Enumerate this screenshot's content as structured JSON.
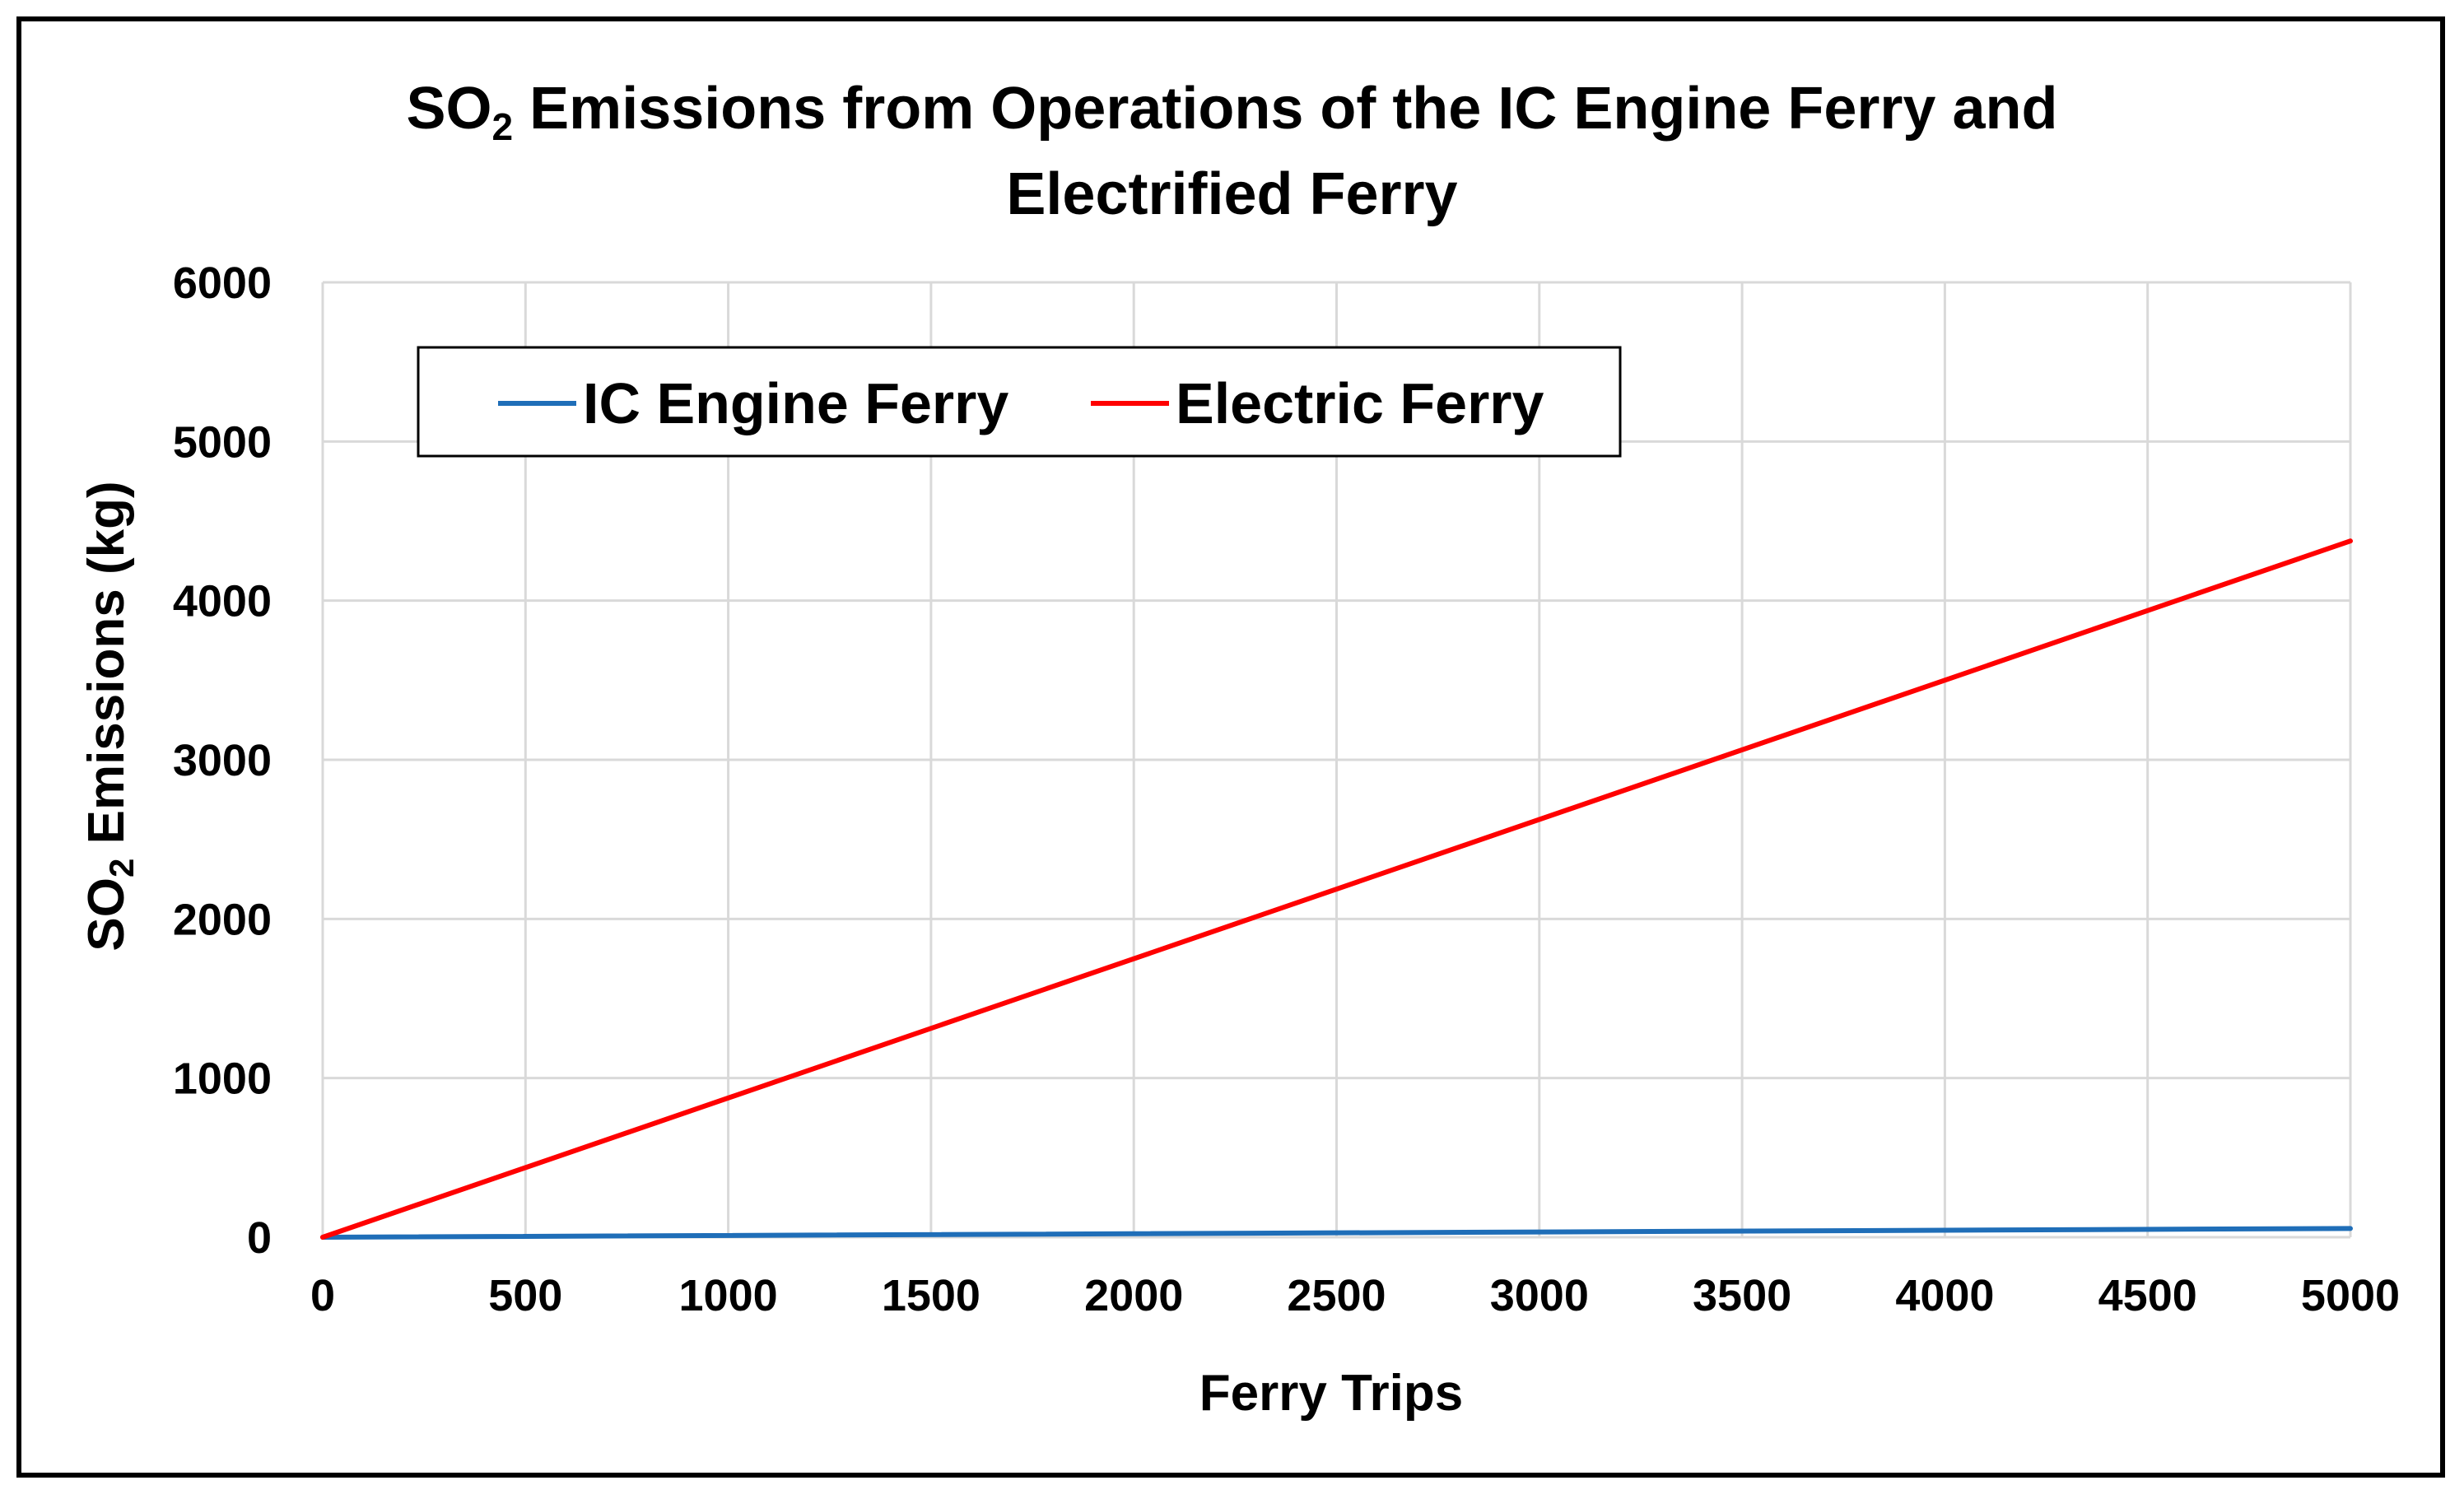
{
  "chart_data": {
    "type": "line",
    "title_main": "SO",
    "title_sub": "2",
    "title_rest_line1": " Emissions from Operations of the IC Engine Ferry and",
    "title_line2": "Electrified Ferry",
    "xlabel": "Ferry Trips",
    "ylabel_main": "SO",
    "ylabel_sub": "2",
    "ylabel_rest": " Emissions (kg)",
    "xlim": [
      0,
      5000
    ],
    "ylim": [
      0,
      6000
    ],
    "xticks": [
      0,
      500,
      1000,
      1500,
      2000,
      2500,
      3000,
      3500,
      4000,
      4500,
      5000
    ],
    "yticks": [
      0,
      1000,
      2000,
      3000,
      4000,
      5000,
      6000
    ],
    "grid": true,
    "legend_position": "top-left",
    "series": [
      {
        "name": "IC Engine Ferry",
        "color": "#1f6eb8",
        "x": [
          0,
          5000
        ],
        "y": [
          0,
          55
        ]
      },
      {
        "name": "Electric Ferry",
        "color": "#ff0000",
        "x": [
          0,
          5000
        ],
        "y": [
          0,
          4375
        ]
      }
    ]
  }
}
